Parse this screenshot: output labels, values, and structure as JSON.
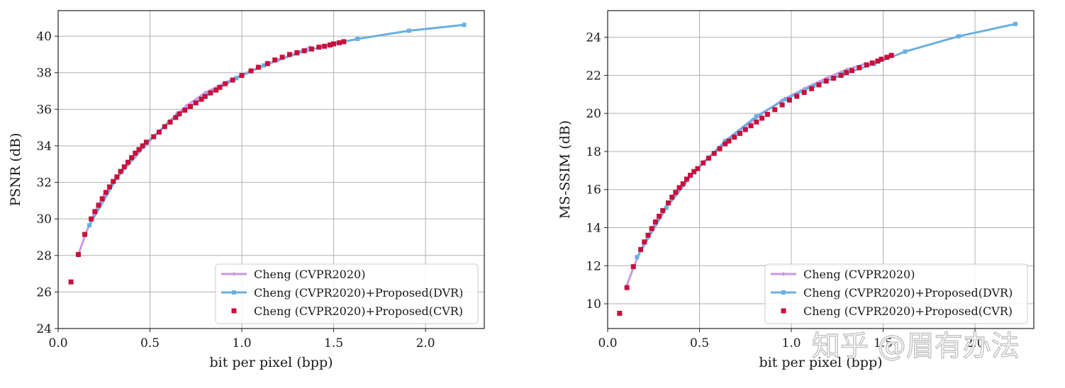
{
  "watermark": "知乎 @眉有办法",
  "colors": {
    "cheng": "#c79ae6",
    "dvr": "#6ab0e0",
    "cvr": "#c8103c",
    "grid": "#b0b0b0"
  },
  "chart_data": [
    {
      "type": "line",
      "xlabel": "bit per pixel (bpp)",
      "ylabel": "PSNR (dB)",
      "xlim": [
        0.0,
        2.32
      ],
      "ylim": [
        24,
        41.4
      ],
      "xticks": [
        0.0,
        0.5,
        1.0,
        1.5,
        2.0
      ],
      "xtick_labels": [
        "0.0",
        "0.5",
        "1.0",
        "1.5",
        "2.0"
      ],
      "yticks": [
        24,
        26,
        28,
        30,
        32,
        34,
        36,
        38,
        40
      ],
      "ytick_labels": [
        "24",
        "26",
        "28",
        "30",
        "32",
        "34",
        "36",
        "38",
        "40"
      ],
      "grid": true,
      "legend": "lower-right",
      "series": [
        {
          "name": "Cheng (CVPR2020)",
          "style": "line-diamond",
          "color": "#c79ae6",
          "x": [
            0.11,
            0.15,
            0.2,
            0.25,
            0.3,
            0.35,
            0.42,
            0.5,
            0.6,
            0.7,
            0.8,
            0.9,
            1.0,
            1.1,
            1.2,
            1.3,
            1.37
          ],
          "y": [
            28.05,
            29.2,
            30.4,
            31.3,
            32.0,
            32.6,
            33.4,
            34.3,
            35.3,
            36.2,
            36.9,
            37.4,
            37.9,
            38.3,
            38.7,
            39.1,
            39.4
          ]
        },
        {
          "name": "Cheng (CVPR2020)+Proposed(DVR)",
          "style": "line-square",
          "color": "#6ab0e0",
          "x": [
            0.17,
            0.32,
            0.48,
            0.65,
            0.82,
            0.97,
            1.12,
            1.3,
            1.48,
            1.63,
            1.91,
            2.21
          ],
          "y": [
            29.65,
            32.25,
            34.15,
            35.7,
            36.85,
            37.7,
            38.4,
            39.05,
            39.55,
            39.85,
            40.3,
            40.62
          ]
        },
        {
          "name": "Cheng (CVPR2020)+Proposed(CVR)",
          "style": "markers",
          "color": "#c8103c",
          "x": [
            0.07,
            0.11,
            0.145,
            0.18,
            0.2,
            0.22,
            0.24,
            0.26,
            0.28,
            0.3,
            0.32,
            0.34,
            0.36,
            0.38,
            0.4,
            0.42,
            0.44,
            0.46,
            0.48,
            0.52,
            0.55,
            0.58,
            0.61,
            0.64,
            0.66,
            0.69,
            0.72,
            0.75,
            0.78,
            0.8,
            0.83,
            0.86,
            0.88,
            0.91,
            0.95,
            1.0,
            1.05,
            1.09,
            1.14,
            1.18,
            1.22,
            1.26,
            1.3,
            1.34,
            1.38,
            1.42,
            1.45,
            1.48,
            1.5,
            1.53,
            1.555
          ],
          "y": [
            26.55,
            28.05,
            29.15,
            30.0,
            30.4,
            30.75,
            31.1,
            31.45,
            31.75,
            32.05,
            32.3,
            32.6,
            32.85,
            33.1,
            33.35,
            33.6,
            33.8,
            34.0,
            34.2,
            34.5,
            34.75,
            35.05,
            35.3,
            35.55,
            35.75,
            35.95,
            36.15,
            36.35,
            36.55,
            36.7,
            36.9,
            37.05,
            37.2,
            37.4,
            37.6,
            37.85,
            38.1,
            38.3,
            38.5,
            38.7,
            38.85,
            39.0,
            39.1,
            39.2,
            39.3,
            39.4,
            39.45,
            39.52,
            39.58,
            39.64,
            39.7
          ]
        }
      ]
    },
    {
      "type": "line",
      "xlabel": "bit per pixel (bpp)",
      "ylabel": "MS-SSIM (dB)",
      "xlim": [
        0.0,
        2.32
      ],
      "ylim": [
        8.7,
        25.4
      ],
      "xticks": [
        0.0,
        0.5,
        1.0,
        1.5,
        2.0
      ],
      "xtick_labels": [
        "0.0",
        "0.5",
        "1.0",
        "1.5",
        "2.0"
      ],
      "yticks": [
        10,
        12,
        14,
        16,
        18,
        20,
        22,
        24
      ],
      "ytick_labels": [
        "10",
        "12",
        "14",
        "16",
        "18",
        "20",
        "22",
        "24"
      ],
      "grid": true,
      "legend": "lower-right",
      "series": [
        {
          "name": "Cheng (CVPR2020)",
          "style": "line-diamond",
          "color": "#c79ae6",
          "x": [
            0.1,
            0.14,
            0.18,
            0.22,
            0.27,
            0.32,
            0.38,
            0.45,
            0.53,
            0.62,
            0.72,
            0.83,
            0.95,
            1.07,
            1.19,
            1.3,
            1.4
          ],
          "y": [
            10.85,
            11.9,
            12.8,
            13.6,
            14.4,
            15.05,
            15.9,
            16.7,
            17.5,
            18.3,
            19.1,
            19.9,
            20.7,
            21.3,
            21.85,
            22.3,
            22.6
          ]
        },
        {
          "name": "Cheng (CVPR2020)+Proposed(DVR)",
          "style": "line-square",
          "color": "#6ab0e0",
          "x": [
            0.16,
            0.32,
            0.47,
            0.64,
            0.81,
            0.97,
            1.12,
            1.28,
            1.45,
            1.62,
            1.91,
            2.22
          ],
          "y": [
            12.45,
            15.05,
            16.9,
            18.55,
            19.85,
            20.75,
            21.45,
            22.05,
            22.6,
            23.25,
            24.05,
            24.7
          ]
        },
        {
          "name": "Cheng (CVPR2020)+Proposed(CVR)",
          "style": "markers",
          "color": "#c8103c",
          "x": [
            0.065,
            0.105,
            0.14,
            0.18,
            0.2,
            0.22,
            0.24,
            0.26,
            0.28,
            0.3,
            0.33,
            0.35,
            0.37,
            0.39,
            0.41,
            0.43,
            0.45,
            0.47,
            0.49,
            0.52,
            0.55,
            0.58,
            0.61,
            0.64,
            0.66,
            0.69,
            0.72,
            0.75,
            0.78,
            0.81,
            0.84,
            0.87,
            0.91,
            0.95,
            0.99,
            1.03,
            1.07,
            1.11,
            1.15,
            1.19,
            1.23,
            1.27,
            1.3,
            1.33,
            1.37,
            1.41,
            1.44,
            1.47,
            1.49,
            1.52,
            1.545
          ],
          "y": [
            9.5,
            10.85,
            11.95,
            12.85,
            13.25,
            13.6,
            13.95,
            14.3,
            14.6,
            14.9,
            15.3,
            15.6,
            15.85,
            16.1,
            16.3,
            16.55,
            16.75,
            16.95,
            17.1,
            17.4,
            17.65,
            17.9,
            18.15,
            18.4,
            18.55,
            18.75,
            18.95,
            19.15,
            19.35,
            19.55,
            19.75,
            19.95,
            20.2,
            20.45,
            20.7,
            20.9,
            21.1,
            21.3,
            21.5,
            21.7,
            21.85,
            22.0,
            22.15,
            22.25,
            22.4,
            22.55,
            22.65,
            22.75,
            22.85,
            22.95,
            23.05
          ]
        }
      ]
    }
  ]
}
